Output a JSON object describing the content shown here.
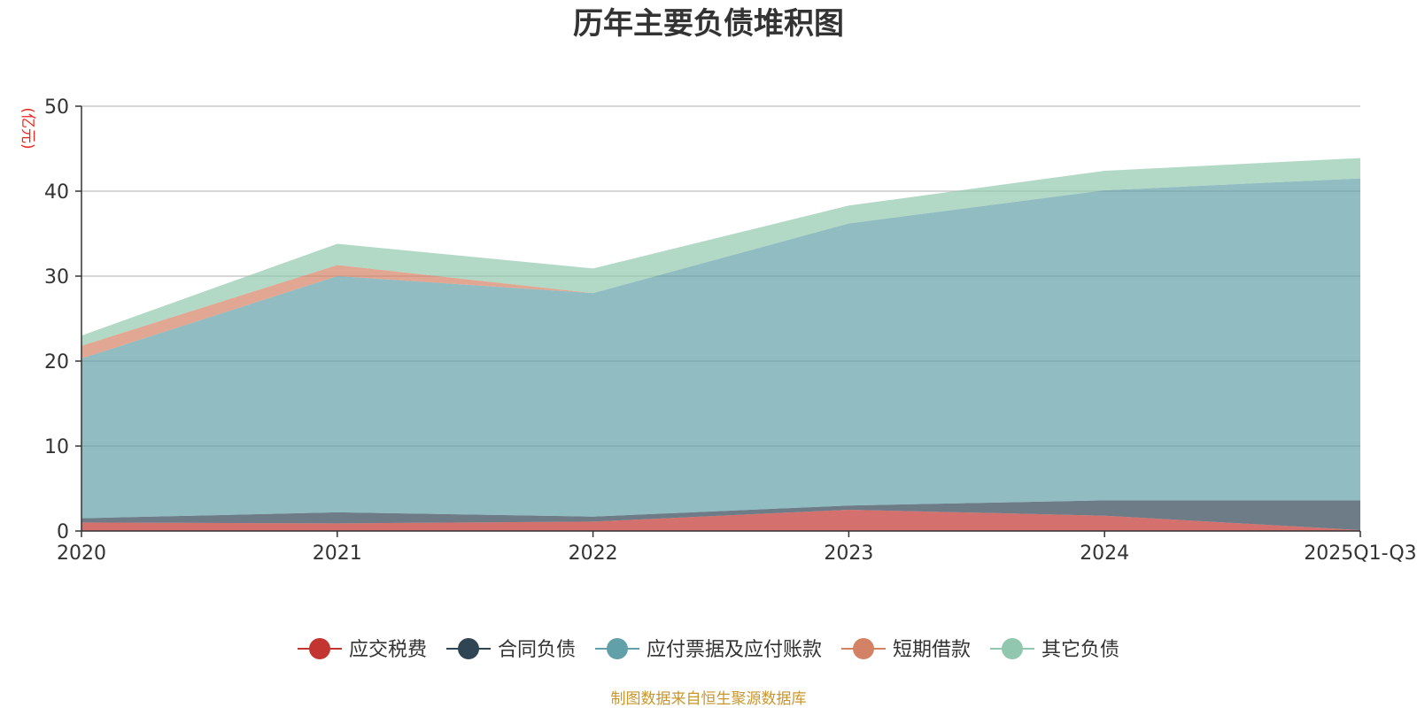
{
  "chart_data": {
    "type": "area",
    "stacked": true,
    "title": "历年主要负债堆积图",
    "ylabel": "(亿元)",
    "xlabel": "",
    "categories": [
      "2020",
      "2021",
      "2022",
      "2023",
      "2024",
      "2025Q1-Q3"
    ],
    "ylim": [
      0,
      50
    ],
    "yticks": [
      0,
      10,
      20,
      30,
      40,
      50
    ],
    "grid": true,
    "legend_position": "bottom",
    "series": [
      {
        "name": "应交税费",
        "color": "#c23531",
        "values": [
          1.0,
          0.9,
          1.1,
          2.5,
          1.8,
          0.1
        ]
      },
      {
        "name": "合同负债",
        "color": "#2f4554",
        "values": [
          0.5,
          1.3,
          0.6,
          0.5,
          1.8,
          3.5
        ]
      },
      {
        "name": "应付票据及应付账款",
        "color": "#61a0a8",
        "values": [
          18.8,
          27.8,
          26.3,
          33.2,
          36.5,
          37.9
        ]
      },
      {
        "name": "短期借款",
        "color": "#d48265",
        "values": [
          1.5,
          1.3,
          0.0,
          0.0,
          0.0,
          0.0
        ]
      },
      {
        "name": "其它负债",
        "color": "#91c7ae",
        "values": [
          1.2,
          2.5,
          2.9,
          2.1,
          2.3,
          2.4
        ]
      }
    ],
    "source_note": "制图数据来自恒生聚源数据库"
  }
}
